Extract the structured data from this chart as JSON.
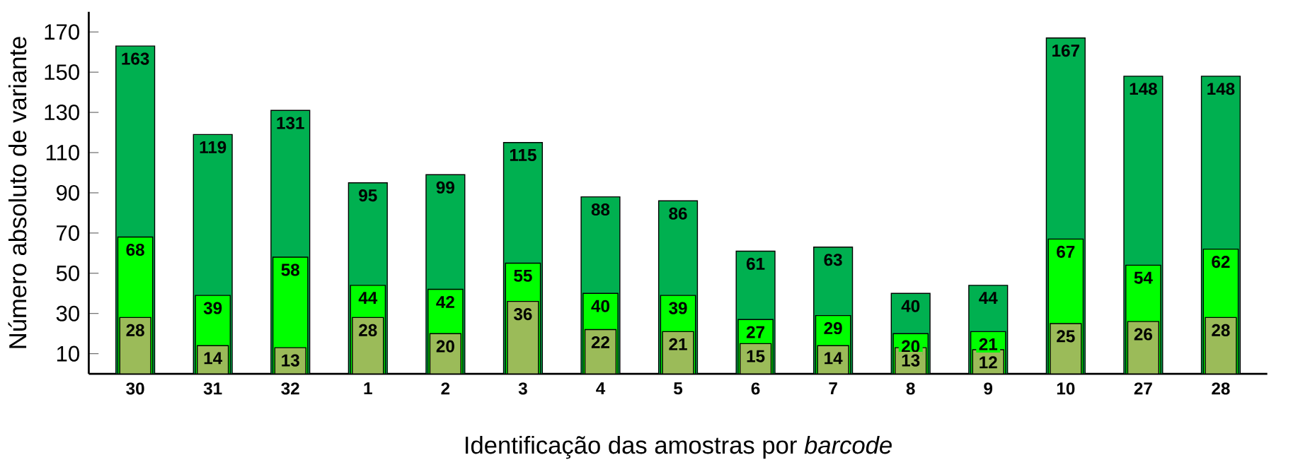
{
  "chart_data": {
    "type": "bar",
    "xlabel": "Identificação das amostras por *barcode*",
    "ylabel": "Número absoluto de variante",
    "categories": [
      "30",
      "31",
      "32",
      "1",
      "2",
      "3",
      "4",
      "5",
      "6",
      "7",
      "8",
      "9",
      "10",
      "27",
      "28"
    ],
    "series": [
      {
        "color": "#00b050",
        "values": [
          163,
          119,
          131,
          95,
          99,
          115,
          88,
          86,
          61,
          63,
          40,
          44,
          167,
          148,
          148
        ]
      },
      {
        "color": "#00ff00",
        "values": [
          68,
          39,
          58,
          44,
          42,
          55,
          40,
          39,
          27,
          29,
          20,
          21,
          67,
          54,
          62
        ]
      },
      {
        "color": "#9bbb59",
        "values": [
          28,
          14,
          13,
          28,
          20,
          36,
          22,
          21,
          15,
          14,
          13,
          12,
          25,
          26,
          28
        ]
      }
    ],
    "ylim": [
      0,
      180
    ],
    "yticks": [
      10,
      30,
      50,
      70,
      90,
      110,
      130,
      150,
      170
    ],
    "data_labels": true
  }
}
